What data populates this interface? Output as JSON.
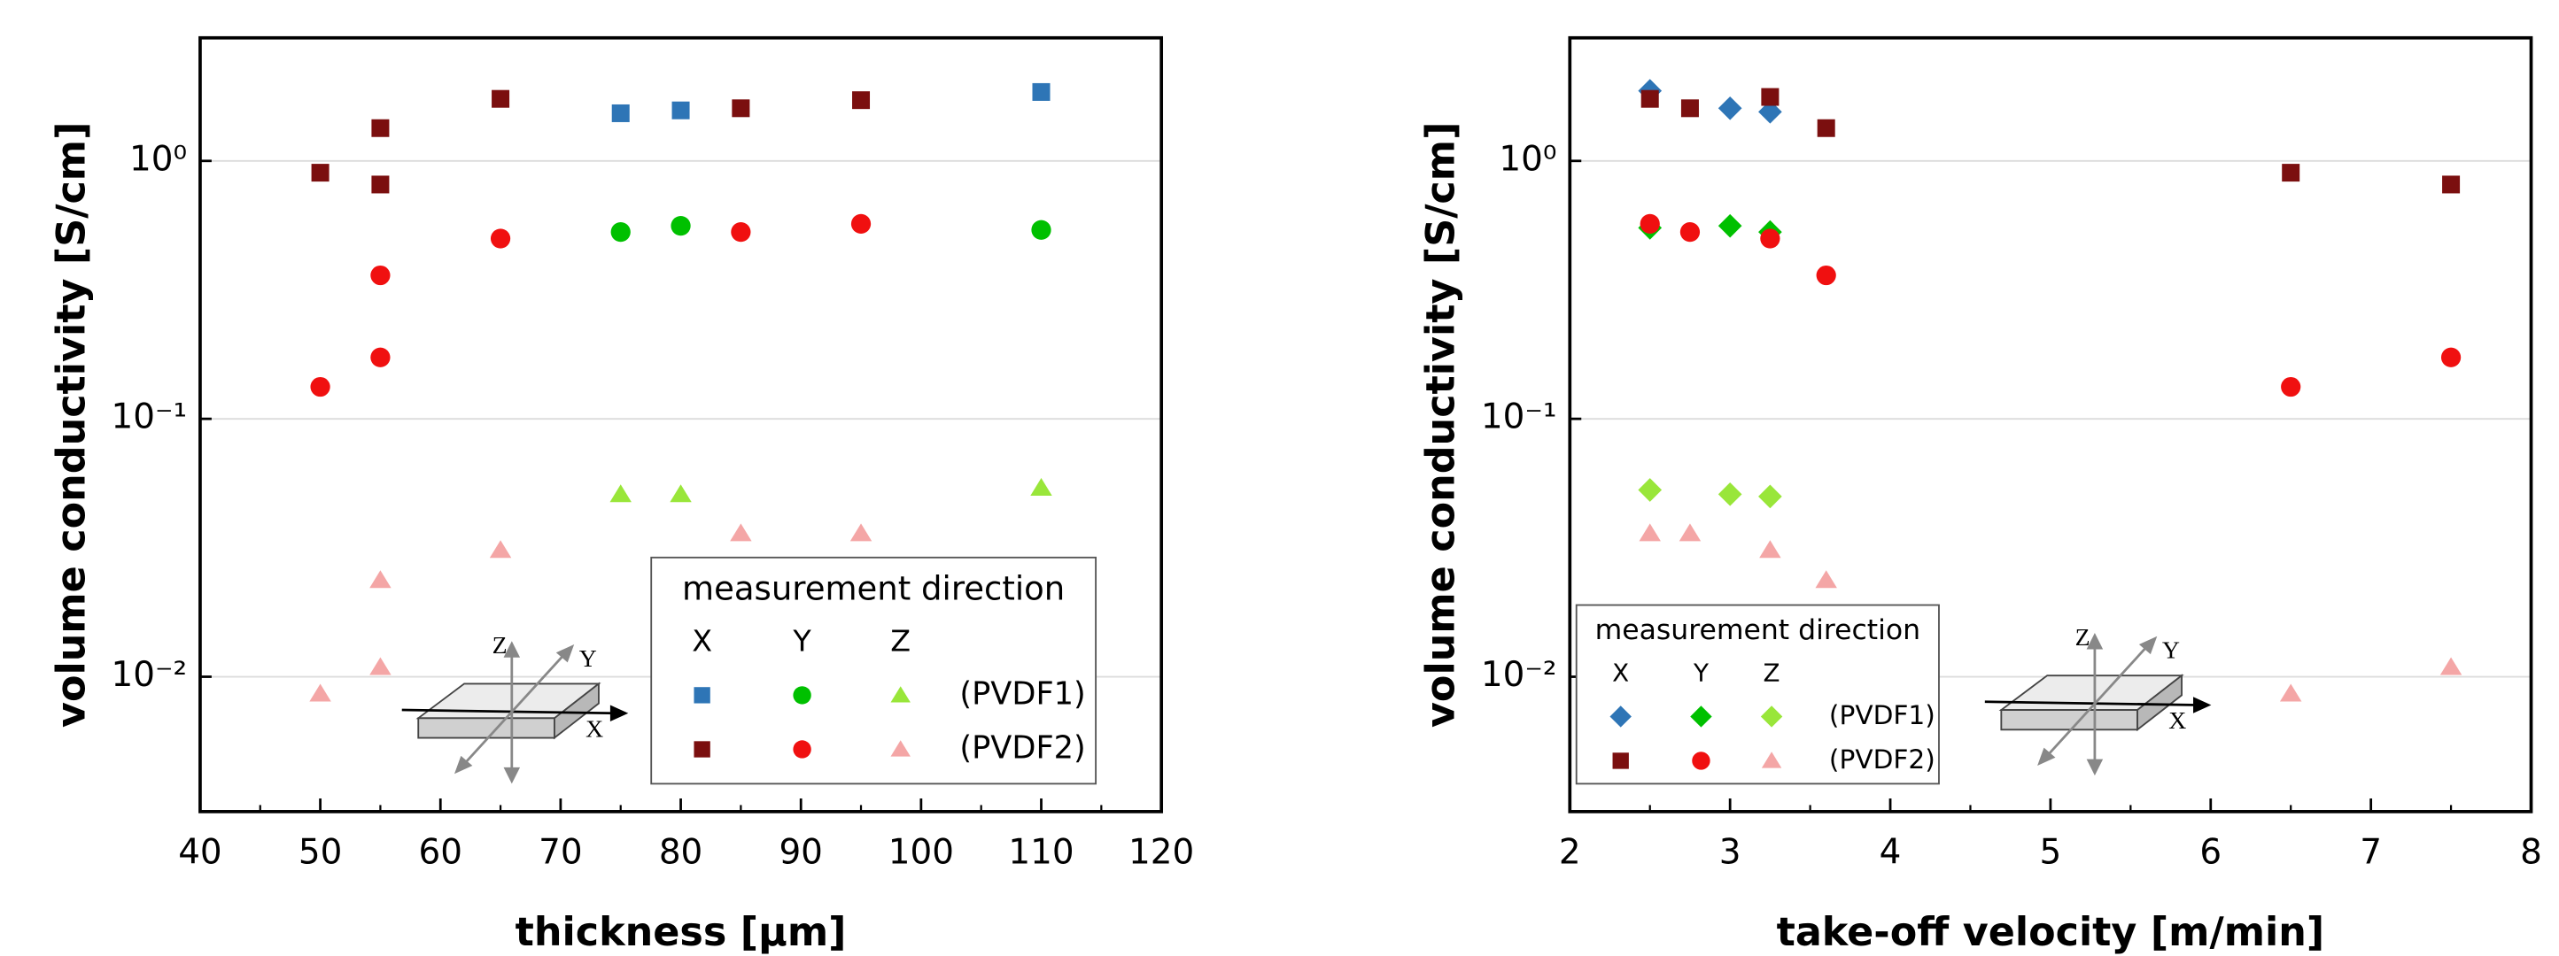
{
  "chart_data": [
    {
      "type": "scatter",
      "xlabel": "thickness [µm]",
      "ylabel": "volume conductivity [S/cm]",
      "xlim": [
        40,
        120
      ],
      "xticks": [
        40,
        50,
        60,
        70,
        80,
        90,
        100,
        110,
        120
      ],
      "ylim": [
        0.003,
        3
      ],
      "log_y": true,
      "grid": true,
      "yticks": [
        {
          "value": 0.01,
          "label": "10⁻²"
        },
        {
          "value": 0.1,
          "label": "10⁻¹"
        },
        {
          "value": 1,
          "label": "10⁰"
        }
      ],
      "legend": {
        "title": "measurement direction",
        "columns": [
          "X",
          "Y",
          "Z"
        ],
        "rows": [
          "(PVDF1)",
          "(PVDF2)"
        ]
      },
      "diagram_labels": [
        "X",
        "Y",
        "Z"
      ],
      "series": [
        {
          "color": "#2e75b6",
          "marker": "square",
          "x": [
            75,
            80,
            110
          ],
          "values": [
            1.53,
            1.57,
            1.85
          ]
        },
        {
          "color": "#00c000",
          "marker": "circle",
          "x": [
            75,
            80,
            110
          ],
          "values": [
            0.53,
            0.56,
            0.54
          ]
        },
        {
          "color": "#99e63a",
          "marker": "triangle",
          "x": [
            75,
            80,
            110
          ],
          "values": [
            0.051,
            0.051,
            0.054
          ]
        },
        {
          "color": "#7b0f0f",
          "marker": "square",
          "x": [
            50,
            55,
            55,
            65,
            85,
            95
          ],
          "values": [
            0.9,
            1.34,
            0.81,
            1.74,
            1.6,
            1.72
          ]
        },
        {
          "color": "#f01010",
          "marker": "circle",
          "x": [
            50,
            55,
            55,
            65,
            85,
            95
          ],
          "values": [
            0.133,
            0.36,
            0.173,
            0.5,
            0.53,
            0.57
          ]
        },
        {
          "color": "#f4a6a6",
          "marker": "triangle",
          "x": [
            50,
            55,
            55,
            65,
            85,
            95
          ],
          "values": [
            0.0086,
            0.0237,
            0.0109,
            0.031,
            0.036,
            0.036
          ]
        }
      ]
    },
    {
      "type": "scatter",
      "xlabel": "take-off velocity [m/min]",
      "ylabel": "volume conductivity [S/cm]",
      "xlim": [
        2,
        8
      ],
      "xticks": [
        2,
        3,
        4,
        5,
        6,
        7,
        8
      ],
      "ylim": [
        0.003,
        3
      ],
      "log_y": true,
      "grid": true,
      "yticks": [
        {
          "value": 0.01,
          "label": "10⁻²"
        },
        {
          "value": 0.1,
          "label": "10⁻¹"
        },
        {
          "value": 1,
          "label": "10⁰"
        }
      ],
      "legend": {
        "title": "measurement direction",
        "columns": [
          "X",
          "Y",
          "Z"
        ],
        "rows": [
          "(PVDF1)",
          "(PVDF2)"
        ]
      },
      "diagram_labels": [
        "X",
        "Y",
        "Z"
      ],
      "series": [
        {
          "color": "#2e75b6",
          "marker": "diamond",
          "x": [
            2.5,
            3.0,
            3.25
          ],
          "values": [
            1.87,
            1.6,
            1.55
          ]
        },
        {
          "color": "#00c000",
          "marker": "diamond",
          "x": [
            2.5,
            3.0,
            3.25
          ],
          "values": [
            0.55,
            0.56,
            0.53
          ]
        },
        {
          "color": "#99e63a",
          "marker": "diamond",
          "x": [
            2.5,
            3.0,
            3.25
          ],
          "values": [
            0.053,
            0.051,
            0.05
          ]
        },
        {
          "color": "#7b0f0f",
          "marker": "square",
          "x": [
            2.5,
            2.75,
            3.25,
            3.6,
            6.5,
            7.5
          ],
          "values": [
            1.74,
            1.6,
            1.77,
            1.34,
            0.9,
            0.81
          ]
        },
        {
          "color": "#f01010",
          "marker": "circle",
          "x": [
            2.5,
            2.75,
            3.25,
            3.6,
            6.5,
            7.5
          ],
          "values": [
            0.57,
            0.53,
            0.5,
            0.36,
            0.133,
            0.173
          ]
        },
        {
          "color": "#f4a6a6",
          "marker": "triangle",
          "x": [
            2.5,
            2.75,
            3.25,
            3.6,
            6.5,
            7.5
          ],
          "values": [
            0.036,
            0.036,
            0.031,
            0.0237,
            0.0086,
            0.0109
          ]
        }
      ]
    }
  ]
}
